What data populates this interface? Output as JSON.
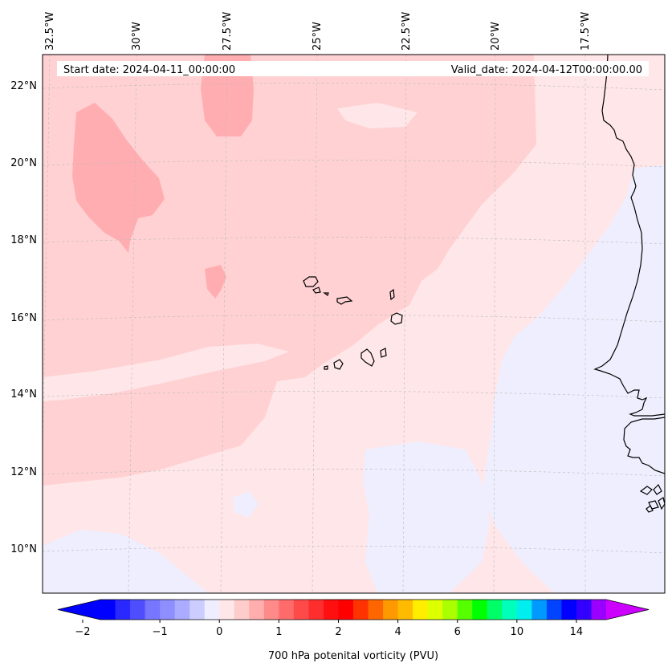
{
  "map": {
    "start_date": "Start date: 2024-04-11_00:00:00",
    "valid_date": "Valid_date: 2024-04-12T00:00:00.00",
    "lon_labels": [
      "32.5°W",
      "30°W",
      "27.5°W",
      "25°W",
      "22.5°W",
      "20°W",
      "17.5°W"
    ],
    "lat_labels": [
      "22°N",
      "20°N",
      "18°N",
      "16°N",
      "14°N",
      "12°N",
      "10°N"
    ],
    "colors": {
      "pale_pink": "#ffe6e8",
      "light_pink": "#ffd1d3",
      "mid_pink": "#ffadb0",
      "pale_blue": "#eeeefe",
      "coastline": "#000000",
      "gridline": "#bbbbbb"
    }
  },
  "colorbar": {
    "title": "700 hPa potenital vorticity (PVU)",
    "tick_labels": [
      "−2",
      "−1",
      "0",
      "1",
      "2",
      "4",
      "6",
      "10",
      "14"
    ],
    "colors": [
      "#0000ff",
      "#2828ff",
      "#4e4eff",
      "#7676ff",
      "#8e8eff",
      "#ababff",
      "#ccccff",
      "#eeeeff",
      "#ffe6e8",
      "#ffcccc",
      "#ffadad",
      "#ff8a8a",
      "#ff6b6b",
      "#ff4a4a",
      "#ff2e2e",
      "#ff0f0f",
      "#ff0000",
      "#ff3300",
      "#ff6600",
      "#ff9900",
      "#ffbb00",
      "#ffee00",
      "#ddff00",
      "#aaff00",
      "#55ff00",
      "#00ff00",
      "#00ff66",
      "#00ffbb",
      "#00eeee",
      "#0099ff",
      "#0044ff",
      "#0000ff",
      "#3300ff",
      "#9900ff"
    ],
    "max_color": "#cc00ff"
  }
}
